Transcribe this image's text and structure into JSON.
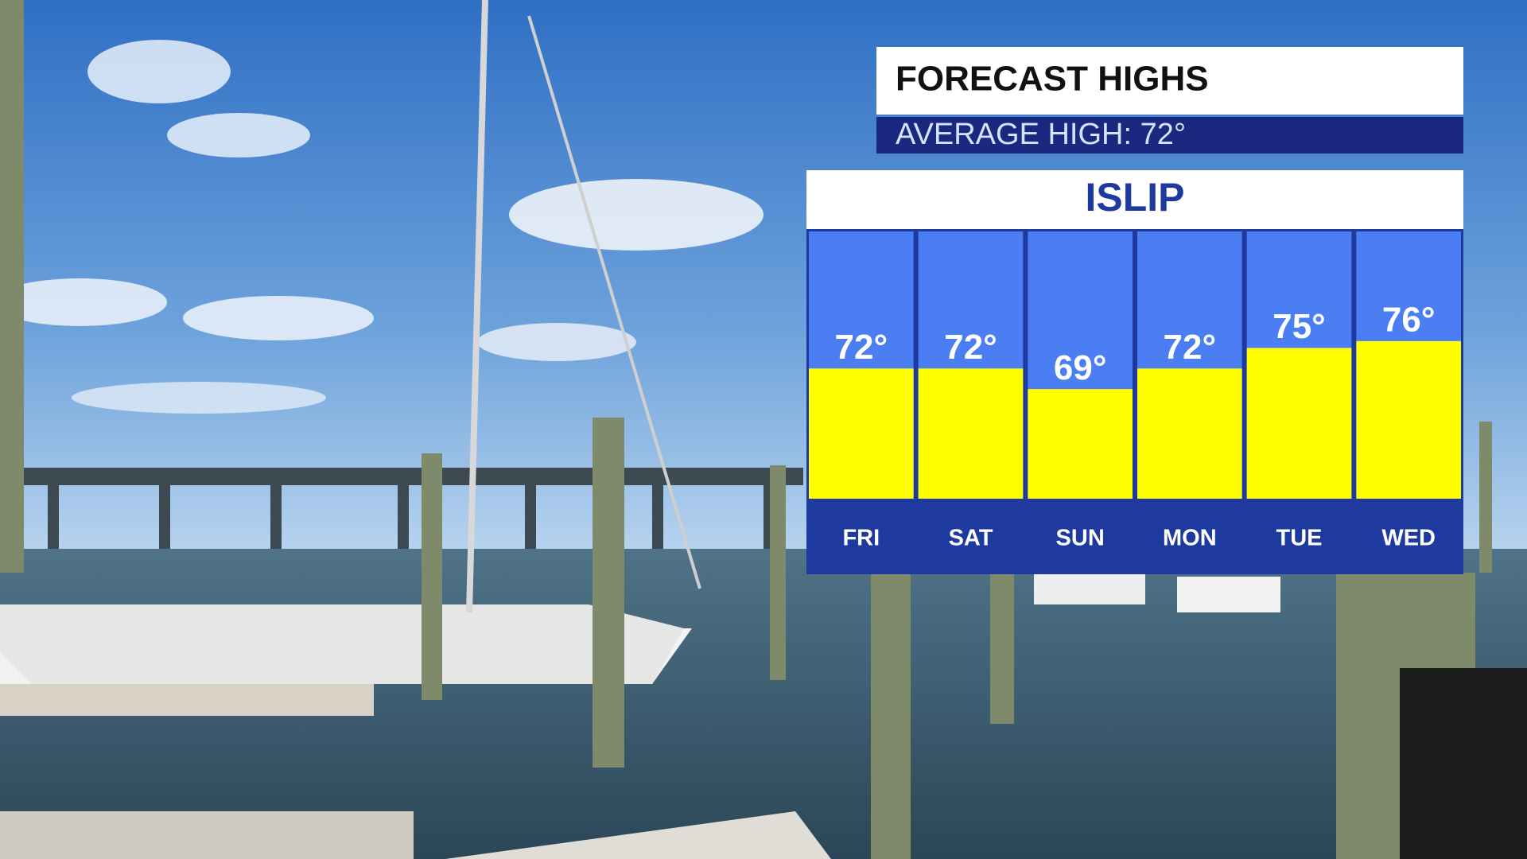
{
  "chart_data": {
    "type": "bar",
    "title": "FORECAST HIGHS",
    "subtitle": "AVERAGE HIGH: 72°",
    "location": "ISLIP",
    "categories": [
      "FRI",
      "SAT",
      "SUN",
      "MON",
      "TUE",
      "WED"
    ],
    "values": [
      72,
      72,
      69,
      72,
      75,
      76
    ],
    "value_labels": [
      "72°",
      "72°",
      "69°",
      "72°",
      "75°",
      "76°"
    ],
    "color": "#ffff00",
    "ylim": [
      53,
      92
    ]
  }
}
